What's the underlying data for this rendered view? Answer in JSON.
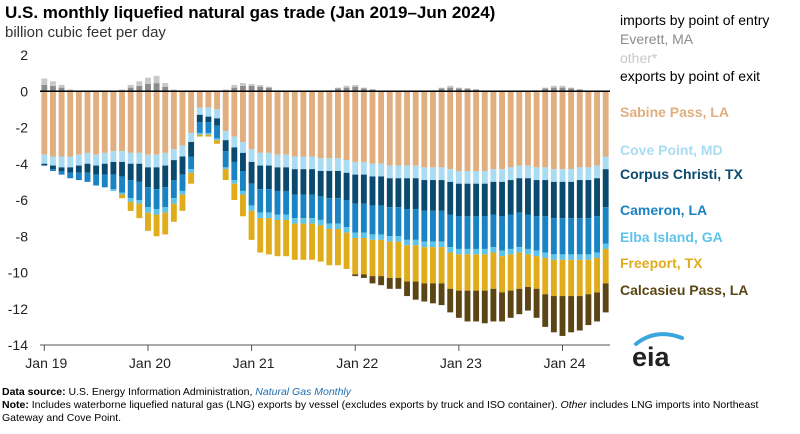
{
  "title": "U.S. monthly liquefied natural gas trade (Jan 2019–Jun 2024)",
  "subtitle": "billion cubic feet per day",
  "legend": {
    "imports_header": "imports by point of entry",
    "exports_header": "exports by point of exit",
    "items": [
      {
        "label": "Everett, MA",
        "color": "#8c8c8c"
      },
      {
        "label": "other*",
        "color": "#c8c8c8"
      },
      {
        "label": "Sabine Pass, LA",
        "color": "#e0ae7f"
      },
      {
        "label": "Cove Point, MD",
        "color": "#a9dcf3"
      },
      {
        "label": "Corpus Christi, TX",
        "color": "#0b4a6f"
      },
      {
        "label": "Cameron, LA",
        "color": "#1a83c3"
      },
      {
        "label": "Elba Island, GA",
        "color": "#5ec3ea"
      },
      {
        "label": "Freeport, TX",
        "color": "#e0ac1c"
      },
      {
        "label": "Calcasieu Pass, LA",
        "color": "#5b4515"
      }
    ]
  },
  "source": {
    "data_label": "Data source:",
    "data_text": "U.S. Energy Information Administration,",
    "data_link": "Natural Gas Monthly",
    "note_label": "Note:",
    "note_text_1": "Includes waterborne liquefied natural gas (LNG) exports by vessel (excludes exports by truck and ISO container).",
    "note_other": "Other",
    "note_text_2": "includes LNG imports into Northeast Gateway and Cove Point."
  },
  "logo_text": "eia",
  "chart_data": {
    "type": "bar",
    "stacked": true,
    "ylim": [
      -14,
      2
    ],
    "yticks": [
      2,
      0,
      -2,
      -4,
      -6,
      -8,
      -10,
      -12,
      -14
    ],
    "xtick_labels": [
      "Jan 19",
      "Jan 20",
      "Jan 21",
      "Jan 22",
      "Jan 23",
      "Jan 24"
    ],
    "xtick_month_index": [
      0,
      12,
      24,
      36,
      48,
      60
    ],
    "months": 66,
    "start_month": "Jan 2019",
    "import_series": [
      {
        "name": "Everett, MA",
        "color": "#8c8c8c",
        "values": [
          0.35,
          0.3,
          0.2,
          0.05,
          0,
          0,
          0,
          0,
          0,
          0.05,
          0.2,
          0.3,
          0.4,
          0.45,
          0.25,
          0.05,
          0,
          0,
          0,
          0,
          0,
          0.05,
          0.2,
          0.3,
          0.3,
          0.25,
          0.2,
          0.05,
          0,
          0,
          0,
          0,
          0,
          0.05,
          0.15,
          0.2,
          0.25,
          0.15,
          0.1,
          0,
          0,
          0,
          0,
          0,
          0,
          0.05,
          0.15,
          0.2,
          0.15,
          0.15,
          0.1,
          0,
          0,
          0,
          0,
          0,
          0,
          0.05,
          0.15,
          0.2,
          0.2,
          0.15,
          0.1,
          0,
          0,
          0
        ]
      },
      {
        "name": "other*",
        "color": "#c8c8c8",
        "values": [
          0.35,
          0.25,
          0.15,
          0.05,
          0,
          0,
          0,
          0,
          0,
          0.05,
          0.15,
          0.25,
          0.35,
          0.4,
          0.2,
          0.05,
          0,
          0,
          0,
          0,
          0,
          0.05,
          0.15,
          0.15,
          0.1,
          0.1,
          0.05,
          0,
          0,
          0,
          0,
          0,
          0,
          0,
          0.05,
          0.1,
          0.1,
          0.05,
          0,
          0,
          0,
          0,
          0,
          0,
          0,
          0,
          0.05,
          0.1,
          0.05,
          0,
          0,
          0,
          0,
          0,
          0,
          0,
          0,
          0,
          0.05,
          0.1,
          0.1,
          0.05,
          0,
          0,
          0,
          0
        ]
      }
    ],
    "export_series": [
      {
        "name": "Sabine Pass, LA",
        "color": "#e0ae7f",
        "values": [
          3.5,
          3.6,
          3.6,
          3.6,
          3.5,
          3.4,
          3.5,
          3.4,
          3.3,
          3.3,
          3.4,
          3.4,
          3.5,
          3.5,
          3.4,
          3.2,
          3.0,
          2.3,
          0.9,
          0.9,
          1.0,
          2.2,
          2.5,
          2.8,
          3.2,
          3.4,
          3.4,
          3.5,
          3.5,
          3.6,
          3.6,
          3.6,
          3.7,
          3.7,
          3.7,
          3.8,
          3.9,
          3.9,
          4.0,
          4.0,
          4.1,
          4.1,
          4.1,
          4.1,
          4.2,
          4.2,
          4.2,
          4.3,
          4.4,
          4.4,
          4.4,
          4.4,
          4.3,
          4.3,
          4.2,
          4.1,
          4.1,
          4.2,
          4.2,
          4.3,
          4.3,
          4.3,
          4.2,
          4.2,
          4.1,
          3.6
        ]
      },
      {
        "name": "Cove Point, MD",
        "color": "#a9dcf3",
        "values": [
          0.5,
          0.5,
          0.6,
          0.6,
          0.6,
          0.6,
          0.6,
          0.6,
          0.6,
          0.6,
          0.6,
          0.6,
          0.7,
          0.7,
          0.7,
          0.6,
          0.6,
          0.5,
          0.4,
          0.5,
          0.5,
          0.5,
          0.6,
          0.6,
          0.7,
          0.7,
          0.7,
          0.7,
          0.7,
          0.7,
          0.7,
          0.7,
          0.7,
          0.7,
          0.7,
          0.7,
          0.7,
          0.7,
          0.7,
          0.7,
          0.7,
          0.7,
          0.7,
          0.7,
          0.7,
          0.7,
          0.7,
          0.7,
          0.7,
          0.7,
          0.7,
          0.7,
          0.7,
          0.7,
          0.7,
          0.7,
          0.7,
          0.7,
          0.7,
          0.7,
          0.7,
          0.7,
          0.7,
          0.7,
          0.7,
          0.7
        ]
      },
      {
        "name": "Corpus Christi, TX",
        "color": "#0b4a6f",
        "values": [
          0.1,
          0.2,
          0.2,
          0.3,
          0.4,
          0.5,
          0.5,
          0.6,
          0.7,
          0.8,
          0.9,
          1.0,
          1.1,
          1.2,
          1.2,
          1.1,
          1.0,
          0.8,
          0.4,
          0.3,
          0.4,
          0.6,
          0.8,
          1.0,
          1.2,
          1.3,
          1.3,
          1.3,
          1.3,
          1.4,
          1.4,
          1.4,
          1.4,
          1.5,
          1.5,
          1.5,
          1.6,
          1.6,
          1.6,
          1.6,
          1.6,
          1.6,
          1.7,
          1.7,
          1.7,
          1.7,
          1.7,
          1.8,
          1.8,
          1.8,
          1.8,
          1.8,
          1.8,
          1.9,
          1.9,
          1.9,
          2.0,
          2.0,
          2.0,
          2.0,
          2.0,
          2.0,
          2.1,
          2.1,
          2.1,
          2.1
        ]
      },
      {
        "name": "Cameron, LA",
        "color": "#1a83c3",
        "values": [
          0,
          0.1,
          0.2,
          0.3,
          0.4,
          0.5,
          0.6,
          0.7,
          0.8,
          0.9,
          1.0,
          1.0,
          1.1,
          1.1,
          1.1,
          1.0,
          0.9,
          0.7,
          0.6,
          0.6,
          0.7,
          0.9,
          1.0,
          1.1,
          1.2,
          1.3,
          1.3,
          1.3,
          1.3,
          1.3,
          1.3,
          1.3,
          1.3,
          1.4,
          1.4,
          1.5,
          1.6,
          1.6,
          1.6,
          1.6,
          1.6,
          1.6,
          1.7,
          1.7,
          1.7,
          1.7,
          1.7,
          1.8,
          1.8,
          1.8,
          1.8,
          1.8,
          1.8,
          1.9,
          1.9,
          1.9,
          1.9,
          1.9,
          2.0,
          2.0,
          2.0,
          2.0,
          2.0,
          2.0,
          2.0,
          2.0
        ]
      },
      {
        "name": "Elba Island, GA",
        "color": "#5ec3ea",
        "values": [
          0,
          0,
          0,
          0,
          0,
          0,
          0,
          0,
          0.1,
          0.1,
          0.2,
          0.2,
          0.3,
          0.3,
          0.3,
          0.3,
          0.2,
          0.2,
          0.1,
          0.1,
          0.1,
          0.1,
          0.2,
          0.2,
          0.3,
          0.3,
          0.3,
          0.3,
          0.3,
          0.3,
          0.3,
          0.3,
          0.3,
          0.3,
          0.3,
          0.3,
          0.3,
          0.3,
          0.3,
          0.3,
          0.3,
          0.3,
          0.3,
          0.3,
          0.3,
          0.3,
          0.3,
          0.3,
          0.3,
          0.3,
          0.3,
          0.3,
          0.3,
          0.3,
          0.3,
          0.3,
          0.3,
          0.3,
          0.3,
          0.3,
          0.3,
          0.3,
          0.3,
          0.3,
          0.3,
          0.3
        ]
      },
      {
        "name": "Freeport, TX",
        "color": "#e0ac1c",
        "values": [
          0,
          0,
          0,
          0,
          0,
          0,
          0,
          0,
          0,
          0.2,
          0.5,
          0.8,
          1.0,
          1.2,
          1.2,
          1.0,
          0.9,
          0.6,
          0.1,
          0.1,
          0.2,
          0.6,
          0.9,
          1.2,
          1.6,
          1.9,
          2.0,
          2.0,
          2.0,
          2.0,
          2.0,
          2.0,
          2.0,
          2.0,
          2.0,
          2.0,
          2.0,
          2.0,
          2.0,
          2.0,
          2.0,
          2.0,
          2.0,
          2.0,
          2.0,
          2.0,
          2.0,
          2.0,
          2.0,
          2.0,
          2.0,
          2.0,
          2.0,
          2.0,
          2.0,
          2.0,
          1.8,
          1.8,
          2.0,
          2.0,
          2.0,
          2.0,
          2.0,
          1.9,
          1.9,
          1.9
        ]
      },
      {
        "name": "Calcasieu Pass, LA",
        "color": "#5b4515",
        "values": [
          0,
          0,
          0,
          0,
          0,
          0,
          0,
          0,
          0,
          0,
          0,
          0,
          0,
          0,
          0,
          0,
          0,
          0,
          0,
          0,
          0,
          0,
          0,
          0,
          0,
          0,
          0,
          0,
          0,
          0,
          0,
          0,
          0,
          0,
          0,
          0,
          0.1,
          0.2,
          0.4,
          0.5,
          0.6,
          0.6,
          0.8,
          1.0,
          1.0,
          1.1,
          1.2,
          1.3,
          1.5,
          1.7,
          1.7,
          1.8,
          1.8,
          1.6,
          1.5,
          1.4,
          1.3,
          1.6,
          1.8,
          2.0,
          2.2,
          2.0,
          1.9,
          1.7,
          1.6,
          1.6
        ]
      }
    ]
  }
}
